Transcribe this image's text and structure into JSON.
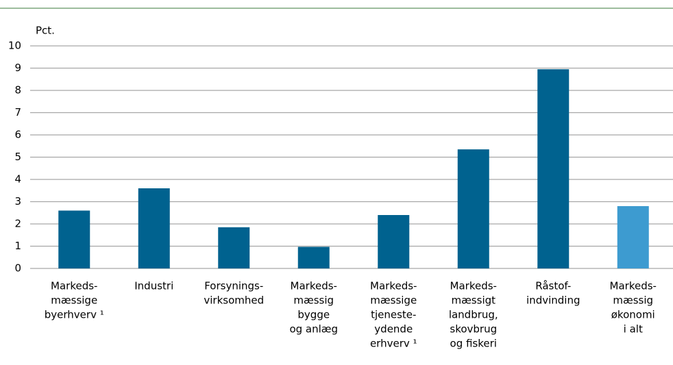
{
  "chart_data": {
    "type": "bar",
    "y_label": "Pct.",
    "categories": [
      [
        "Markeds-",
        "mæssige",
        "byerhverv ¹"
      ],
      [
        "Industri"
      ],
      [
        "Forsynings-",
        "virksomhed"
      ],
      [
        "Markeds-",
        "mæssig",
        "bygge",
        "og anlæg"
      ],
      [
        "Markeds-",
        "mæssige",
        "tjeneste-",
        "ydende",
        "erhverv ¹"
      ],
      [
        "Markeds-",
        "mæssigt",
        "landbrug,",
        "skovbrug",
        "og fiskeri"
      ],
      [
        "Råstof-",
        "indvinding"
      ],
      [
        "Markeds-",
        "mæssig",
        "økonomi",
        "i alt"
      ]
    ],
    "values": [
      2.6,
      3.6,
      1.85,
      0.97,
      2.4,
      5.35,
      8.95,
      2.8
    ],
    "colors": [
      "#00628f",
      "#00628f",
      "#00628f",
      "#00628f",
      "#00628f",
      "#00628f",
      "#00628f",
      "#3d9bd0"
    ],
    "ylim": [
      0,
      10
    ],
    "yticks": [
      0,
      1,
      2,
      3,
      4,
      5,
      6,
      7,
      8,
      9,
      10
    ],
    "grid": true
  }
}
